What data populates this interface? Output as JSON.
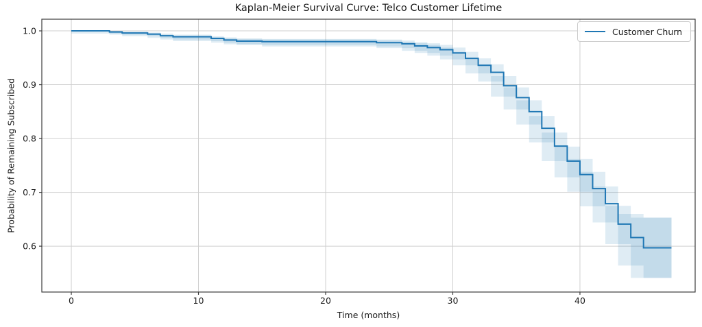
{
  "chart_data": {
    "type": "line",
    "subtype": "kaplan-meier-step",
    "title": "Kaplan-Meier Survival Curve: Telco Customer Lifetime",
    "xlabel": "Time (months)",
    "ylabel": "Probability of Remaining Subscribed",
    "legend": [
      "Customer Churn"
    ],
    "legend_position": "upper right",
    "grid": true,
    "xlim": [
      -2.32,
      49.06
    ],
    "ylim": [
      0.5148,
      1.0217
    ],
    "xticks": [
      0,
      10,
      20,
      30,
      40
    ],
    "yticks": [
      1.0,
      0.9,
      0.8,
      0.7,
      0.6
    ],
    "x_end": 47.2,
    "line_color": "#1f77b4",
    "band_color": "#1f77b4",
    "band_opacity": 0.14,
    "grid_color": "#cfcfcf",
    "spine_color": "#3c3c3c",
    "series": [
      {
        "name": "Customer Churn",
        "comment": "steps: [time_months, survival_probability, ci_lower, ci_upper]; survival holds value until next time",
        "steps": [
          [
            0,
            1.0,
            1.0,
            1.0
          ],
          [
            3,
            0.998,
            0.995,
            1.0
          ],
          [
            4,
            0.996,
            0.993,
            0.999
          ],
          [
            6,
            0.994,
            0.99,
            0.997
          ],
          [
            7,
            0.991,
            0.987,
            0.995
          ],
          [
            8,
            0.989,
            0.984,
            0.993
          ],
          [
            11,
            0.986,
            0.981,
            0.99
          ],
          [
            12,
            0.983,
            0.978,
            0.988
          ],
          [
            13,
            0.981,
            0.975,
            0.986
          ],
          [
            15,
            0.98,
            0.974,
            0.985
          ],
          [
            24,
            0.978,
            0.971,
            0.984
          ],
          [
            26,
            0.976,
            0.968,
            0.982
          ],
          [
            27,
            0.972,
            0.963,
            0.979
          ],
          [
            28,
            0.969,
            0.959,
            0.977
          ],
          [
            29,
            0.965,
            0.954,
            0.974
          ],
          [
            30,
            0.959,
            0.947,
            0.969
          ],
          [
            31,
            0.949,
            0.936,
            0.961
          ],
          [
            32,
            0.936,
            0.921,
            0.949
          ],
          [
            33,
            0.923,
            0.906,
            0.938
          ],
          [
            34,
            0.898,
            0.878,
            0.916
          ],
          [
            35,
            0.876,
            0.854,
            0.895
          ],
          [
            36,
            0.85,
            0.826,
            0.871
          ],
          [
            37,
            0.819,
            0.793,
            0.842
          ],
          [
            38,
            0.786,
            0.758,
            0.811
          ],
          [
            39,
            0.758,
            0.728,
            0.785
          ],
          [
            40,
            0.733,
            0.701,
            0.762
          ],
          [
            41,
            0.707,
            0.674,
            0.738
          ],
          [
            42,
            0.679,
            0.644,
            0.711
          ],
          [
            43,
            0.641,
            0.604,
            0.675
          ],
          [
            44,
            0.616,
            0.564,
            0.66
          ],
          [
            45,
            0.597,
            0.541,
            0.653
          ]
        ]
      }
    ]
  }
}
